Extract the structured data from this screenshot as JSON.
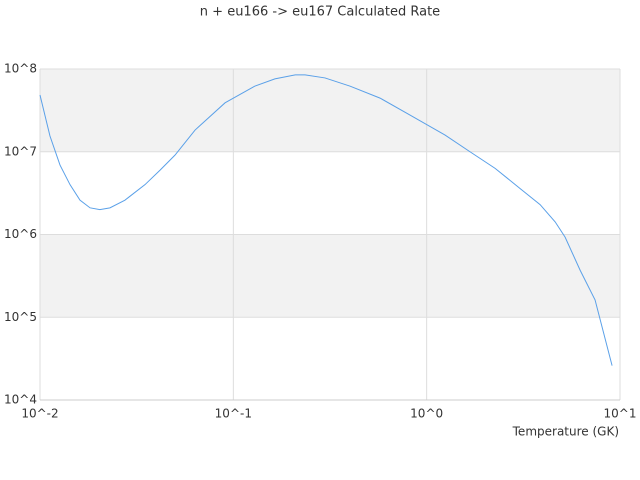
{
  "chart_data": {
    "type": "line",
    "title": "n + eu166 -> eu167 Calculated Rate",
    "x_label": "Temperature (GK)",
    "log_x": true,
    "log_y": true,
    "grid": true,
    "xlim": [
      0.01,
      10
    ],
    "xticks": [
      {
        "value": 0.01,
        "label": "10^-2"
      },
      {
        "value": 0.1,
        "label": "10^-1"
      },
      {
        "value": 1,
        "label": "10^0"
      },
      {
        "value": 10,
        "label": "10^1"
      }
    ],
    "ylim": [
      10000,
      100000000
    ],
    "yticks": [
      {
        "value": 10000,
        "label": "10^4"
      },
      {
        "value": 100000,
        "label": "10^5"
      },
      {
        "value": 1000000,
        "label": "10^6"
      },
      {
        "value": 10000000,
        "label": "10^7"
      },
      {
        "value": 100000000,
        "label": "10^8"
      }
    ],
    "x": [
      0.01,
      0.01126,
      0.01269,
      0.0143,
      0.0161,
      0.01815,
      0.0204,
      0.023,
      0.0275,
      0.0349,
      0.0418,
      0.0499,
      0.0634,
      0.0906,
      0.129,
      0.164,
      0.209,
      0.235,
      0.298,
      0.402,
      0.574,
      0.82,
      1.245,
      1.675,
      2.26,
      3.04,
      3.86,
      4.62,
      5.2,
      6.22,
      7.43,
      9.1
    ],
    "series": [
      {
        "color": "#5aa0e8",
        "values": [
          48500000,
          15500000,
          6900000,
          4000000,
          2600000,
          2100000,
          2000000,
          2100000,
          2600000,
          4000000,
          6000000,
          9100000,
          18300000,
          39000000,
          62000000,
          76000000,
          85000000,
          85000000,
          78000000,
          62000000,
          44500000,
          27800000,
          15900000,
          10000000,
          6300000,
          3600000,
          2300000,
          1420000,
          930000,
          370000,
          162000,
          26000
        ]
      }
    ]
  }
}
